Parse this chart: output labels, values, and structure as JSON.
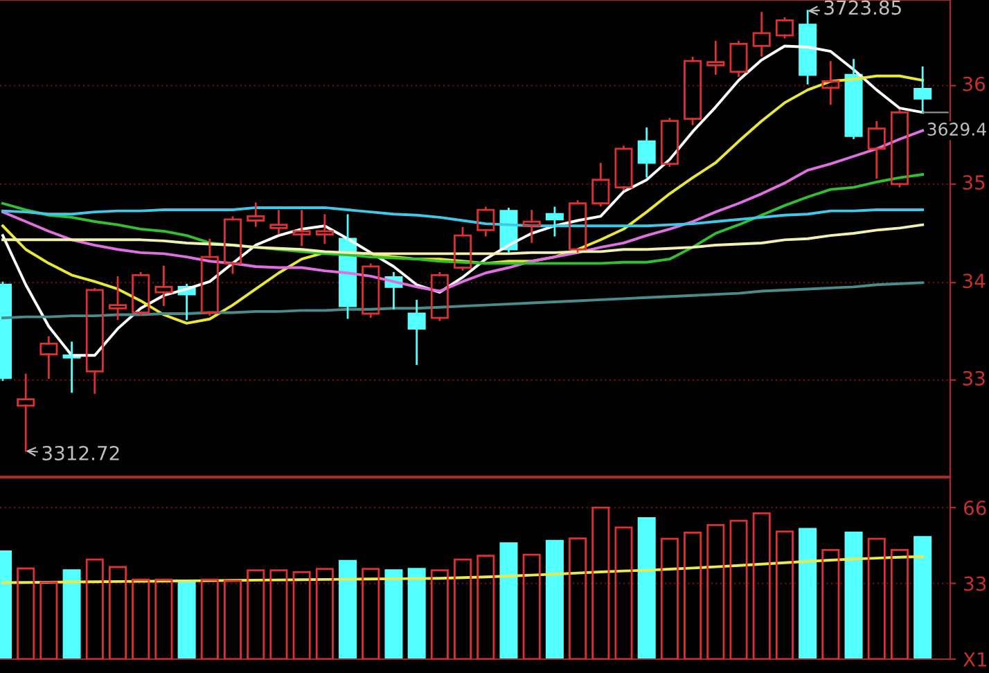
{
  "chart_data": [
    {
      "type": "candlestick",
      "categories": [
        null,
        null,
        null,
        null,
        null,
        null,
        null,
        null,
        null,
        null,
        null,
        null,
        null,
        null,
        null,
        null,
        null,
        null,
        null,
        null,
        null,
        null,
        null,
        null,
        null,
        null,
        null,
        null,
        null,
        null,
        null,
        null,
        null,
        null,
        null,
        null,
        null,
        null,
        null,
        null,
        null
      ],
      "ohlc": [
        [
          3468,
          3470,
          3379,
          3381
        ],
        [
          3355,
          3384,
          3312.72,
          3361
        ],
        [
          3403,
          3419,
          3381,
          3413
        ],
        [
          3402,
          3414,
          3368,
          3400
        ],
        [
          3387,
          3464,
          3367,
          3463
        ],
        [
          3446,
          3475,
          3436,
          3449
        ],
        [
          3442,
          3479,
          3440,
          3477
        ],
        [
          3461,
          3485,
          3449,
          3466
        ],
        [
          3466,
          3468,
          3436,
          3459
        ],
        [
          3442,
          3510,
          3440,
          3494
        ],
        [
          3488,
          3531,
          3479,
          3529
        ],
        [
          3528,
          3544,
          3523,
          3532
        ],
        [
          3521,
          3537,
          3516,
          3524
        ],
        [
          3515,
          3537,
          3505,
          3518
        ],
        [
          3515,
          3533,
          3507,
          3518
        ],
        [
          3511,
          3533,
          3437,
          3448
        ],
        [
          3441,
          3487,
          3438,
          3485
        ],
        [
          3475,
          3479,
          3446,
          3466
        ],
        [
          3441,
          3453,
          3394,
          3427
        ],
        [
          3437,
          3479,
          3435,
          3477
        ],
        [
          3484,
          3521,
          3482,
          3514
        ],
        [
          3519,
          3540,
          3514,
          3538
        ],
        [
          3537,
          3539,
          3499,
          3501
        ],
        [
          3523,
          3537,
          3508,
          3527
        ],
        [
          3534,
          3540,
          3514,
          3529
        ],
        [
          3501,
          3546,
          3499,
          3544
        ],
        [
          3544,
          3581,
          3542,
          3566
        ],
        [
          3559,
          3597,
          3557,
          3595
        ],
        [
          3602,
          3614,
          3569,
          3582
        ],
        [
          3581,
          3623,
          3579,
          3621
        ],
        [
          3623,
          3680,
          3618,
          3677
        ],
        [
          3673,
          3695,
          3665,
          3676
        ],
        [
          3667,
          3695,
          3663,
          3693
        ],
        [
          3691,
          3722,
          3682,
          3703
        ],
        [
          3701,
          3717,
          3699,
          3715
        ],
        [
          3711,
          3723.85,
          3656,
          3664
        ],
        [
          3652,
          3676,
          3637,
          3658
        ],
        [
          3664,
          3678,
          3605,
          3607
        ],
        [
          3595,
          3620,
          3568,
          3614
        ],
        [
          3562,
          3631,
          3560,
          3629
        ],
        [
          3651,
          3671,
          3630,
          3642
        ]
      ],
      "colors": [
        "#54ffff",
        "#e03030",
        "#e03030",
        "#54ffff",
        "#e03030",
        "#e03030",
        "#e03030",
        "#e03030",
        "#54ffff",
        "#e03030",
        "#e03030",
        "#e03030",
        "#e03030",
        "#e03030",
        "#e03030",
        "#54ffff",
        "#e03030",
        "#54ffff",
        "#54ffff",
        "#e03030",
        "#e03030",
        "#e03030",
        "#54ffff",
        "#e03030",
        "#54ffff",
        "#e03030",
        "#e03030",
        "#e03030",
        "#54ffff",
        "#e03030",
        "#e03030",
        "#e03030",
        "#e03030",
        "#e03030",
        "#e03030",
        "#54ffff",
        "#e03030",
        "#54ffff",
        "#e03030",
        "#e03030",
        "#54ffff"
      ],
      "series": [
        {
          "type": "line",
          "color": "#ffffff",
          "values": [
            3514,
            3468,
            3429,
            3402,
            3402,
            3427,
            3446,
            3458,
            3464,
            3471,
            3488,
            3505,
            3514,
            3520,
            3523,
            3511,
            3498,
            3485,
            3468,
            3461,
            3475,
            3492,
            3505,
            3516,
            3523,
            3528,
            3532,
            3555,
            3566,
            3585,
            3611,
            3634,
            3659,
            3678,
            3691,
            3690,
            3686,
            3669,
            3650,
            3633,
            3629
          ]
        },
        {
          "type": "line",
          "color": "#e8e83a",
          "values": [
            3523,
            3501,
            3488,
            3477,
            3471,
            3464,
            3453,
            3440,
            3432,
            3436,
            3449,
            3464,
            3479,
            3492,
            3498,
            3498,
            3497,
            3494,
            3492,
            3492,
            3490,
            3488,
            3490,
            3490,
            3494,
            3501,
            3510,
            3520,
            3536,
            3553,
            3568,
            3582,
            3602,
            3621,
            3638,
            3650,
            3658,
            3660,
            3663,
            3663,
            3659
          ]
        },
        {
          "type": "line",
          "color": "#e070e0",
          "values": [
            3536,
            3527,
            3518,
            3510,
            3505,
            3501,
            3498,
            3497,
            3494,
            3490,
            3488,
            3485,
            3484,
            3484,
            3481,
            3479,
            3476,
            3471,
            3466,
            3462,
            3471,
            3479,
            3484,
            3490,
            3494,
            3498,
            3503,
            3507,
            3514,
            3520,
            3527,
            3536,
            3544,
            3553,
            3563,
            3575,
            3581,
            3588,
            3595,
            3604,
            3612
          ]
        },
        {
          "type": "line",
          "color": "#30c030",
          "values": [
            3544,
            3538,
            3533,
            3531,
            3527,
            3524,
            3520,
            3518,
            3514,
            3507,
            3505,
            3503,
            3501,
            3499,
            3497,
            3496,
            3494,
            3493,
            3492,
            3490,
            3489,
            3488,
            3488,
            3488,
            3488,
            3488,
            3488,
            3489,
            3489,
            3492,
            3503,
            3516,
            3524,
            3533,
            3542,
            3550,
            3557,
            3559,
            3564,
            3568,
            3571
          ]
        },
        {
          "type": "line",
          "color": "#40c8e8",
          "values": [
            3537,
            3536,
            3534,
            3534,
            3536,
            3537,
            3537,
            3538,
            3538,
            3538,
            3538,
            3540,
            3540,
            3540,
            3540,
            3538,
            3536,
            3534,
            3533,
            3531,
            3528,
            3525,
            3524,
            3523,
            3523,
            3523,
            3523,
            3523,
            3523,
            3524,
            3525,
            3527,
            3529,
            3531,
            3533,
            3534,
            3537,
            3537,
            3538,
            3538,
            3538
          ]
        },
        {
          "type": "line",
          "color": "#f0f0b0",
          "values": [
            3510,
            3510,
            3510,
            3510,
            3510,
            3510,
            3510,
            3509,
            3507,
            3506,
            3505,
            3503,
            3502,
            3501,
            3499,
            3498,
            3497,
            3497,
            3497,
            3497,
            3497,
            3497,
            3497,
            3498,
            3498,
            3499,
            3499,
            3501,
            3501,
            3502,
            3503,
            3505,
            3506,
            3507,
            3510,
            3511,
            3514,
            3516,
            3519,
            3521,
            3524
          ]
        },
        {
          "type": "line",
          "color": "#4a8c8c",
          "values": [
            3437,
            3438,
            3438,
            3439,
            3439,
            3440,
            3440,
            3441,
            3441,
            3442,
            3442,
            3443,
            3443,
            3444,
            3444,
            3445,
            3445,
            3446,
            3446,
            3447,
            3448,
            3449,
            3450,
            3451,
            3452,
            3453,
            3454,
            3455,
            3456,
            3457,
            3458,
            3459,
            3460,
            3462,
            3463,
            3464,
            3465,
            3466,
            3468,
            3469,
            3470
          ]
        }
      ],
      "ylim": [
        3289,
        3734
      ],
      "yticks": [
        {
          "value": 3379,
          "label": null
        },
        {
          "value": 3470,
          "label": null
        },
        {
          "value": 3562,
          "label": null
        },
        {
          "value": 3654,
          "label": null
        }
      ],
      "grid": "y",
      "tick_labels": "y",
      "annotations": [
        "3723.85",
        "3312.72",
        "3629.4",
        "33",
        "34",
        "35",
        "36"
      ]
    },
    {
      "type": "bar",
      "categories": [
        null,
        null,
        null,
        null,
        null,
        null,
        null,
        null,
        null,
        null,
        null,
        null,
        null,
        null,
        null,
        null,
        null,
        null,
        null,
        null,
        null,
        null,
        null,
        null,
        null,
        null,
        null,
        null,
        null,
        null,
        null,
        null,
        null,
        null,
        null,
        null,
        null,
        null,
        null,
        null,
        null
      ],
      "series": [
        {
          "type": "bar",
          "colors": [
            "#54ffff",
            "#e03030",
            "#e03030",
            "#54ffff",
            "#e03030",
            "#e03030",
            "#e03030",
            "#e03030",
            "#54ffff",
            "#e03030",
            "#e03030",
            "#e03030",
            "#e03030",
            "#e03030",
            "#e03030",
            "#54ffff",
            "#e03030",
            "#54ffff",
            "#54ffff",
            "#e03030",
            "#e03030",
            "#e03030",
            "#54ffff",
            "#e03030",
            "#54ffff",
            "#e03030",
            "#e03030",
            "#e03030",
            "#54ffff",
            "#e03030",
            "#e03030",
            "#e03030",
            "#e03030",
            "#e03030",
            "#e03030",
            "#54ffff",
            "#e03030",
            "#54ffff",
            "#e03030",
            "#e03030",
            "#54ffff"
          ],
          "values": [
            46.9,
            39.5,
            33.5,
            38.7,
            43.4,
            40.1,
            34.6,
            34.6,
            34.1,
            34.6,
            34.1,
            38.7,
            38.7,
            37.9,
            39.3,
            42.8,
            39.3,
            38.7,
            39.3,
            38.7,
            43.4,
            45.0,
            50.5,
            45.5,
            51.5,
            52.6,
            66.0,
            57.3,
            61.4,
            52.4,
            55.1,
            58.4,
            60.3,
            63.5,
            55.6,
            56.7,
            47.5,
            55.1,
            52.4,
            47.5,
            53.2
          ]
        },
        {
          "type": "line",
          "color": "#e8e850",
          "values": [
            33.3,
            33.4,
            33.5,
            33.6,
            33.7,
            33.8,
            33.9,
            34.0,
            34.1,
            34.2,
            34.3,
            34.4,
            34.5,
            34.6,
            34.7,
            34.8,
            34.9,
            35.0,
            35.1,
            35.2,
            35.5,
            35.8,
            36.2,
            36.6,
            37.0,
            37.5,
            38.0,
            38.4,
            38.7,
            39.2,
            39.7,
            40.2,
            40.8,
            41.4,
            42.0,
            42.6,
            43.1,
            43.6,
            44.0,
            44.4,
            44.7
          ]
        }
      ],
      "ylim": [
        0,
        79
      ],
      "yticks": [
        {
          "value": 0,
          "label": "X1"
        },
        33,
        66
      ],
      "grid": "y",
      "tick_labels": "y"
    }
  ]
}
